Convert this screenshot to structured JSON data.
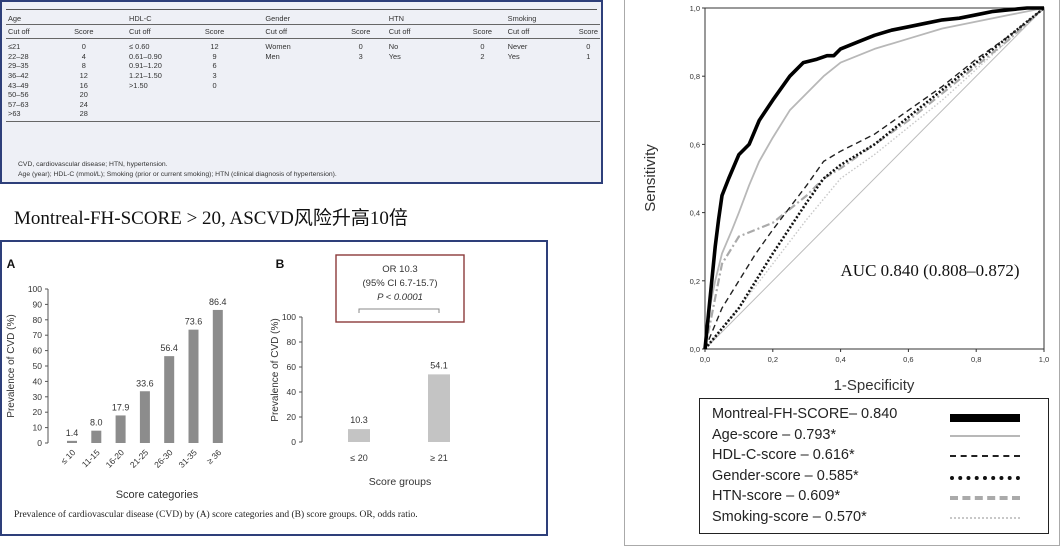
{
  "score_table": {
    "groups": [
      "Age",
      "HDL-C",
      "Gender",
      "HTN",
      "Smoking"
    ],
    "sub_headers": [
      "Cut off",
      "Score"
    ],
    "age": [
      [
        "≤21",
        "0"
      ],
      [
        "22–28",
        "4"
      ],
      [
        "29–35",
        "8"
      ],
      [
        "36–42",
        "12"
      ],
      [
        "43–49",
        "16"
      ],
      [
        "50–56",
        "20"
      ],
      [
        "57–63",
        "24"
      ],
      [
        ">63",
        "28"
      ]
    ],
    "hdl": [
      [
        "≤ 0.60",
        "12"
      ],
      [
        "0.61–0.90",
        "9"
      ],
      [
        "0.91–1.20",
        "6"
      ],
      [
        "1.21–1.50",
        "3"
      ],
      [
        ">1.50",
        "0"
      ]
    ],
    "gender": [
      [
        "Women",
        "0"
      ],
      [
        "Men",
        "3"
      ]
    ],
    "htn": [
      [
        "No",
        "0"
      ],
      [
        "Yes",
        "2"
      ]
    ],
    "smoking": [
      [
        "Never",
        "0"
      ],
      [
        "Yes",
        "1"
      ]
    ],
    "note1": "CVD, cardiovascular disease; HTN, hypertension.",
    "note2": "Age (year); HDL-C (mmol/L); Smoking (prior or current smoking); HTN (clinical diagnosis of hypertension)."
  },
  "headline": "Montreal-FH-SCORE > 20, ASCVD风险升高10倍",
  "chart_data": [
    {
      "type": "bar",
      "panel_label": "A",
      "categories": [
        "≤ 10",
        "11-15",
        "16-20",
        "21-25",
        "26-30",
        "31-35",
        "≥ 36"
      ],
      "values": [
        1.4,
        8.0,
        17.9,
        33.6,
        56.4,
        73.6,
        86.4
      ],
      "data_labels": [
        "1.4",
        "8.0",
        "17.9",
        "33.6",
        "56.4",
        "73.6",
        "86.4"
      ],
      "xlabel": "Score categories",
      "ylabel": "Prevalence of CVD (%)",
      "ylim": [
        0,
        100
      ],
      "yticks": [
        "0",
        "10",
        "20",
        "30",
        "40",
        "50",
        "60",
        "70",
        "80",
        "90",
        "100"
      ],
      "bar_color": "#8c8c8c"
    },
    {
      "type": "bar",
      "panel_label": "B",
      "categories": [
        "≤ 20",
        "≥ 21"
      ],
      "values": [
        10.3,
        54.1
      ],
      "data_labels": [
        "10.3",
        "54.1"
      ],
      "xlabel": "Score groups",
      "ylabel": "Prevalence of CVD (%)",
      "ylim": [
        0,
        100
      ],
      "yticks": [
        "0",
        "20",
        "40",
        "60",
        "80",
        "100"
      ],
      "bar_color": "#c4c4c4",
      "annotation": [
        "OR 10.3",
        "(95% CI 6.7-15.7)",
        "P < 0.0001"
      ]
    },
    {
      "type": "line",
      "xlabel": "1-Specificity",
      "ylabel": "Sensitivity",
      "xticks": [
        "0,0",
        "0,2",
        "0,4",
        "0,6",
        "0,8",
        "1,0"
      ],
      "yticks": [
        "0,0",
        "0,2",
        "0,4",
        "0,6",
        "0,8",
        "1,0"
      ],
      "xlim": [
        0,
        1
      ],
      "ylim": [
        0,
        1
      ],
      "annotation": "AUC 0.840 (0.808–0.872)",
      "legend_position": "bottom",
      "series": [
        {
          "name": "Montreal-FH-SCORE– 0.840",
          "style": "solid-thick",
          "x": [
            0,
            0.005,
            0.01,
            0.02,
            0.03,
            0.04,
            0.05,
            0.07,
            0.1,
            0.13,
            0.16,
            0.2,
            0.25,
            0.29,
            0.33,
            0.36,
            0.38,
            0.4,
            0.45,
            0.5,
            0.55,
            0.6,
            0.65,
            0.7,
            0.75,
            0.8,
            0.85,
            0.9,
            0.95,
            1
          ],
          "y": [
            0,
            0.05,
            0.1,
            0.2,
            0.3,
            0.38,
            0.45,
            0.5,
            0.57,
            0.6,
            0.67,
            0.73,
            0.8,
            0.84,
            0.85,
            0.86,
            0.86,
            0.88,
            0.9,
            0.92,
            0.935,
            0.945,
            0.955,
            0.965,
            0.97,
            0.98,
            0.99,
            0.995,
            1,
            1
          ]
        },
        {
          "name": "Age-score – 0.793*",
          "style": "solid-thin-gray",
          "x": [
            0,
            0.01,
            0.03,
            0.05,
            0.08,
            0.1,
            0.13,
            0.16,
            0.2,
            0.25,
            0.3,
            0.35,
            0.4,
            0.5,
            0.6,
            0.7,
            0.8,
            0.9,
            1
          ],
          "y": [
            0,
            0.1,
            0.2,
            0.28,
            0.35,
            0.4,
            0.48,
            0.55,
            0.62,
            0.7,
            0.75,
            0.8,
            0.84,
            0.88,
            0.91,
            0.94,
            0.96,
            0.98,
            1
          ]
        },
        {
          "name": "HDL-C-score – 0.616*",
          "style": "dashed",
          "x": [
            0,
            0.05,
            0.1,
            0.15,
            0.2,
            0.3,
            0.35,
            0.4,
            0.5,
            0.6,
            0.7,
            0.8,
            0.9,
            1
          ],
          "y": [
            0,
            0.12,
            0.2,
            0.28,
            0.35,
            0.48,
            0.55,
            0.58,
            0.63,
            0.7,
            0.77,
            0.85,
            0.92,
            1
          ]
        },
        {
          "name": "Gender-score – 0.585*",
          "style": "dotted-thick",
          "x": [
            0,
            0.1,
            0.2,
            0.3,
            0.35,
            0.4,
            0.5,
            0.6,
            0.7,
            0.8,
            0.9,
            1
          ],
          "y": [
            0,
            0.12,
            0.28,
            0.43,
            0.5,
            0.54,
            0.6,
            0.68,
            0.76,
            0.84,
            0.92,
            1
          ]
        },
        {
          "name": "HTN-score – 0.609*",
          "style": "dash-gray",
          "x": [
            0,
            0.05,
            0.1,
            0.2,
            0.3,
            0.35,
            0.4,
            0.5,
            0.6,
            0.7,
            0.8,
            0.9,
            1
          ],
          "y": [
            0,
            0.25,
            0.33,
            0.37,
            0.45,
            0.5,
            0.53,
            0.6,
            0.67,
            0.75,
            0.83,
            0.91,
            1
          ]
        },
        {
          "name": "Smoking-score – 0.570*",
          "style": "dotted-light",
          "x": [
            0,
            0.1,
            0.2,
            0.3,
            0.4,
            0.5,
            0.6,
            0.7,
            0.8,
            0.9,
            1
          ],
          "y": [
            0,
            0.12,
            0.25,
            0.38,
            0.5,
            0.57,
            0.65,
            0.73,
            0.82,
            0.91,
            1
          ]
        }
      ],
      "reference_line": true
    }
  ],
  "bar_caption": "Prevalence of cardiovascular disease (CVD) by (A) score categories and (B) score groups. OR, odds ratio."
}
